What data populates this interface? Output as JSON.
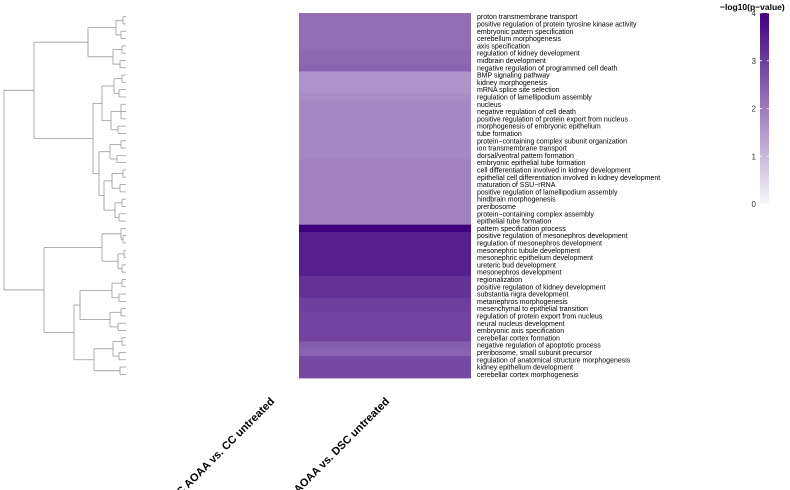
{
  "chart_data": {
    "type": "heatmap",
    "columns": [
      "CC AOAA vs. CC untreated",
      "DSC AOAA vs. DSC untreated"
    ],
    "rows": [
      "proton transmembrane transport",
      "positive regulation of protein tyrosine kinase activity",
      "embryonic pattern specification",
      "cerebellum morphogenesis",
      "axis specification",
      "regulation of kidney development",
      "midbrain development",
      "negative regulation of programmed cell death",
      "BMP signaling pathway",
      "kidney morphogenesis",
      "mRNA splice site selection",
      "regulation of lamellipodium assembly",
      "nucleus",
      "negative regulation of cell death",
      "positive regulation of protein export from nucleus",
      "morphogenesis of embryonic epithelium",
      "tube formation",
      "protein−containing complex subunit organization",
      "ion transmembrane transport",
      "dorsal/ventral pattern formation",
      "embryonic epithelial tube formation",
      "cell differentiation involved in kidney development",
      "epithelial cell differentiation involved in kidney development",
      "maturation of SSU−rRNA",
      "positive regulation of lamellipodium assembly",
      "hindbrain morphogenesis",
      "preribosome",
      "protein−containing complex assembly",
      "epithelial tube formation",
      "pattern specification process",
      "positive regulation of mesonephros development",
      "regulation of mesonephros development",
      "mesonephric tubule development",
      "mesonephric epithelium development",
      "ureteric bud development",
      "mesonephros development",
      "regionalization",
      "positive regulation of kidney development",
      "substantia nigra development",
      "metanephros morphogenesis",
      "mesenchymal to epithelial transition",
      "regulation of protein export from nucleus",
      "neural nucleus development",
      "embryonic axis specification",
      "cerebellar cortex formation",
      "negative regulation of apoptotic process",
      "preribosome, small subunit precursor",
      "regulation of anatomical structure morphogenesis",
      "kidney epithelium development",
      "cerebellar cortex morphogenesis"
    ],
    "values": [
      2.2,
      2.2,
      2.2,
      2.2,
      2.2,
      2.3,
      2.3,
      2.4,
      1.6,
      1.6,
      1.6,
      1.7,
      1.8,
      1.8,
      1.8,
      1.8,
      1.8,
      1.8,
      1.8,
      1.8,
      1.9,
      1.9,
      1.9,
      1.9,
      1.9,
      1.9,
      1.9,
      1.9,
      1.9,
      4.0,
      3.5,
      3.5,
      3.5,
      3.5,
      3.5,
      3.5,
      3.2,
      3.2,
      3.2,
      3.0,
      3.0,
      2.9,
      2.9,
      2.9,
      2.9,
      2.5,
      2.4,
      2.8,
      2.8,
      2.8
    ],
    "legend": {
      "title": "−log10(p−value)",
      "ticks": [
        0,
        1,
        2,
        3,
        4
      ],
      "range": [
        0,
        4
      ],
      "color_low": "#f7f7fa",
      "color_high": "#3f007d",
      "placement": "top-right"
    }
  }
}
